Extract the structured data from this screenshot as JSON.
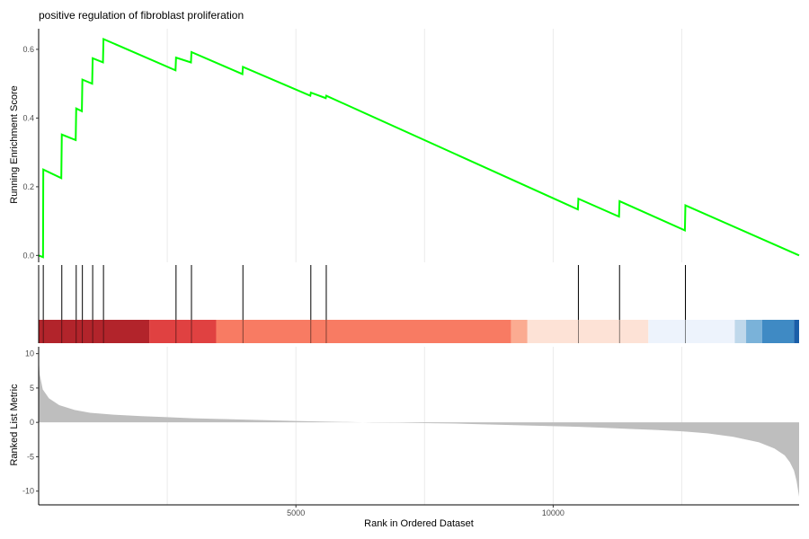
{
  "chart_data": {
    "type": "line",
    "title": "positive regulation of fibroblast proliferation",
    "xlabel": "Rank in Ordered Dataset",
    "ylabel_top": "Running Enrichment Score",
    "ylabel_bottom": "Ranked List Metric",
    "xlim": [
      0,
      14780
    ],
    "x_ticks": [
      5000,
      10000
    ],
    "x_tick_labels": [
      "5000",
      "10000"
    ],
    "x_gridlines": [
      2500,
      5000,
      7500,
      10000,
      12500
    ],
    "grid": true,
    "line_color": "#00ff00",
    "top_panel": {
      "ylim": [
        -0.02,
        0.66
      ],
      "y_ticks": [
        0.0,
        0.2,
        0.4,
        0.6
      ],
      "y_tick_labels": [
        "0.0",
        "0.2",
        "0.4",
        "0.6"
      ],
      "series": [
        {
          "points": [
            [
              0,
              0.0
            ],
            [
              85,
              -0.005
            ],
            [
              90,
              0.25
            ],
            [
              440,
              0.225
            ],
            [
              450,
              0.352
            ],
            [
              720,
              0.336
            ],
            [
              730,
              0.428
            ],
            [
              840,
              0.42
            ],
            [
              850,
              0.512
            ],
            [
              1040,
              0.5
            ],
            [
              1050,
              0.574
            ],
            [
              1250,
              0.562
            ],
            [
              1260,
              0.63
            ],
            [
              2660,
              0.539
            ],
            [
              2670,
              0.576
            ],
            [
              2960,
              0.562
            ],
            [
              2970,
              0.592
            ],
            [
              3960,
              0.528
            ],
            [
              3970,
              0.549
            ],
            [
              5280,
              0.465
            ],
            [
              5290,
              0.474
            ],
            [
              5580,
              0.458
            ],
            [
              5590,
              0.465
            ],
            [
              10480,
              0.134
            ],
            [
              10490,
              0.165
            ],
            [
              11280,
              0.113
            ],
            [
              11290,
              0.158
            ],
            [
              12560,
              0.073
            ],
            [
              12570,
              0.146
            ],
            [
              14780,
              0.0
            ]
          ]
        }
      ]
    },
    "gene_hits": [
      90,
      450,
      730,
      850,
      1050,
      1260,
      2670,
      2970,
      3970,
      5290,
      5590,
      10490,
      11290,
      12570
    ],
    "heat_band": [
      {
        "from": 0,
        "to": 2150,
        "color": "#b2242b"
      },
      {
        "from": 2150,
        "to": 3450,
        "color": "#e04141"
      },
      {
        "from": 3450,
        "to": 9180,
        "color": "#f87b63"
      },
      {
        "from": 9180,
        "to": 9500,
        "color": "#fbab91"
      },
      {
        "from": 9500,
        "to": 11850,
        "color": "#fde2d6"
      },
      {
        "from": 11850,
        "to": 13530,
        "color": "#edf3fc"
      },
      {
        "from": 13530,
        "to": 13750,
        "color": "#bfd8eb"
      },
      {
        "from": 13750,
        "to": 14060,
        "color": "#7ab2d9"
      },
      {
        "from": 14060,
        "to": 14680,
        "color": "#3f8ac4"
      },
      {
        "from": 14680,
        "to": 14780,
        "color": "#1a5ea8"
      }
    ],
    "bottom_panel": {
      "ylim": [
        -12,
        11
      ],
      "y_ticks": [
        10,
        5,
        0,
        -5,
        -10
      ],
      "y_tick_labels": [
        "10",
        "5",
        "0",
        "-5",
        "-10"
      ],
      "fill_color": "#bebebe",
      "metric_curve": [
        [
          0,
          9.5
        ],
        [
          20,
          7.0
        ],
        [
          80,
          4.8
        ],
        [
          200,
          3.5
        ],
        [
          400,
          2.5
        ],
        [
          700,
          1.8
        ],
        [
          1000,
          1.4
        ],
        [
          1500,
          1.1
        ],
        [
          2000,
          0.9
        ],
        [
          2500,
          0.75
        ],
        [
          3000,
          0.6
        ],
        [
          3500,
          0.5
        ],
        [
          4000,
          0.4
        ],
        [
          4500,
          0.3
        ],
        [
          5000,
          0.2
        ],
        [
          5500,
          0.12
        ],
        [
          6000,
          0.05
        ],
        [
          6500,
          -0.02
        ],
        [
          7000,
          -0.05
        ],
        [
          7500,
          -0.1
        ],
        [
          8000,
          -0.15
        ],
        [
          8500,
          -0.25
        ],
        [
          9000,
          -0.35
        ],
        [
          9500,
          -0.45
        ],
        [
          10000,
          -0.55
        ],
        [
          10500,
          -0.65
        ],
        [
          11000,
          -0.8
        ],
        [
          11500,
          -0.95
        ],
        [
          12000,
          -1.1
        ],
        [
          12500,
          -1.3
        ],
        [
          13000,
          -1.6
        ],
        [
          13500,
          -2.1
        ],
        [
          14000,
          -2.9
        ],
        [
          14300,
          -3.8
        ],
        [
          14500,
          -4.8
        ],
        [
          14600,
          -5.8
        ],
        [
          14680,
          -7.0
        ],
        [
          14730,
          -8.5
        ],
        [
          14780,
          -10.8
        ]
      ]
    }
  }
}
